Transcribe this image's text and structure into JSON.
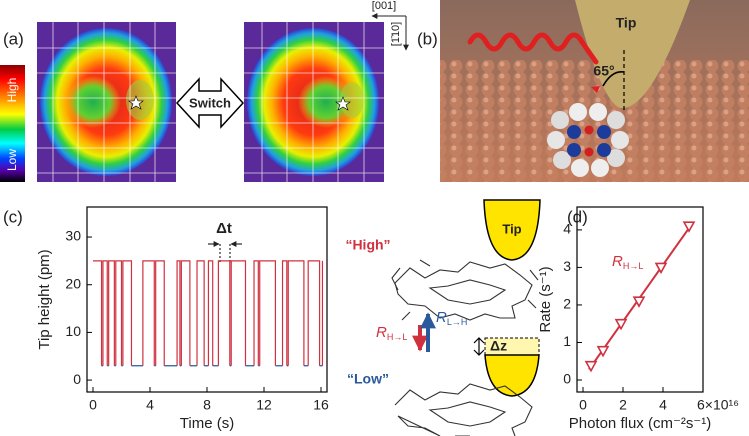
{
  "panel_labels": [
    "(a)",
    "(b)",
    "(c)",
    "(d)"
  ],
  "panel_a": {
    "colorbar": {
      "high": "High",
      "low": "Low"
    },
    "switch": "Switch",
    "directions": [
      "[001]",
      "[1̄10]"
    ]
  },
  "panel_b": {
    "tip": "Tip",
    "angle": "65°"
  },
  "panel_c_schematic": {
    "tip": "Tip",
    "high": "“High”",
    "low": "“Low”",
    "rate_down": {
      "symbol": "R",
      "subscript": "H→L"
    },
    "rate_up": {
      "symbol": "R",
      "subscript": "L→H"
    },
    "dz": "Δz"
  },
  "chart_data": [
    {
      "type": "line",
      "x_label": "Time (s)",
      "y_label": "Tip height (pm)",
      "annotation": "Δt",
      "x": [
        0,
        0.6,
        0.6,
        0.7,
        0.7,
        0.7,
        1.0,
        1.0,
        1.1,
        1.1,
        1.1,
        1.5,
        1.5,
        1.6,
        1.6,
        1.6,
        2.0,
        2.0,
        2.1,
        2.1,
        2.1,
        2.7,
        2.7,
        3.5,
        3.5,
        3.5,
        4.3,
        4.3,
        4.4,
        4.4,
        4.4,
        5.0,
        5.0,
        5.9,
        5.9,
        5.9,
        6.1,
        6.1,
        6.2,
        6.2,
        6.2,
        6.8,
        6.8,
        7.3,
        7.3,
        7.3,
        7.8,
        7.8,
        8.1,
        8.1,
        8.1,
        8.4,
        8.4,
        8.8,
        8.8,
        8.8,
        9.6,
        9.6,
        9.7,
        9.7,
        9.7,
        10.7,
        10.7,
        11.3,
        11.3,
        11.3,
        11.6,
        11.6,
        11.7,
        11.7,
        11.7,
        12.8,
        12.8,
        13.3,
        13.3,
        13.3,
        13.6,
        13.6,
        13.7,
        13.7,
        13.7,
        14.8,
        14.8,
        15.1,
        15.1,
        15.1,
        15.9,
        15.9,
        16.1,
        16.1,
        16.1
      ],
      "series": [
        {
          "color": "#d0313f",
          "values": [
            25,
            25,
            3,
            null,
            3,
            25,
            25,
            3,
            null,
            3,
            25,
            25,
            3,
            null,
            3,
            25,
            25,
            3,
            null,
            3,
            25,
            25,
            3,
            null,
            3,
            25,
            25,
            3,
            null,
            3,
            25,
            25,
            3,
            null,
            3,
            25,
            25,
            3,
            null,
            3,
            25,
            25,
            3,
            null,
            3,
            25,
            25,
            3,
            null,
            3,
            25,
            25,
            3,
            null,
            3,
            25,
            25,
            3,
            null,
            3,
            25,
            25,
            3,
            null,
            3,
            25,
            25,
            3,
            null,
            3,
            25,
            25,
            3,
            null,
            3,
            25,
            25,
            3,
            null,
            3,
            25,
            25,
            3,
            null,
            3,
            25,
            25,
            3,
            null,
            3,
            25
          ]
        },
        {
          "color": "#2a5a9c",
          "values": [
            null,
            null,
            3,
            3,
            null,
            null,
            null,
            3,
            3,
            null,
            null,
            null,
            3,
            3,
            null,
            null,
            null,
            3,
            3,
            null,
            null,
            null,
            3,
            3,
            null,
            null,
            null,
            3,
            3,
            null,
            null,
            null,
            3,
            3,
            null,
            null,
            null,
            3,
            3,
            null,
            null,
            null,
            3,
            3,
            null,
            null,
            null,
            3,
            3,
            null,
            null,
            null,
            3,
            3,
            null,
            null,
            null,
            3,
            3,
            null,
            null,
            null,
            3,
            3,
            null,
            null,
            null,
            3,
            3,
            null,
            null,
            null,
            3,
            3,
            null,
            null,
            null,
            3,
            3,
            null,
            null,
            null,
            3,
            3,
            null,
            null,
            null,
            3,
            3,
            null,
            null
          ]
        }
      ],
      "xlim": [
        -0.42,
        16.42
      ],
      "ylim": [
        -2.5,
        36.3
      ],
      "xticks": [
        0,
        4,
        8,
        12,
        16
      ],
      "yticks": [
        0,
        10,
        20,
        30
      ]
    },
    {
      "type": "scatter",
      "x_label": "Photon flux (cm⁻²s⁻¹)",
      "y_label": "Rate (s⁻¹)",
      "x": [
        0.4,
        1.0,
        1.9,
        2.8,
        3.9,
        5.3
      ],
      "values": [
        0.38,
        0.78,
        1.5,
        2.1,
        3.0,
        4.1
      ],
      "color": "#d0313f",
      "fit": {
        "x": [
          0.3,
          5.5
        ],
        "values": [
          0.28,
          4.2
        ]
      },
      "annotation": {
        "symbol": "R",
        "subscript": "H→L"
      },
      "xlim": [
        -0.3,
        6
      ],
      "ylim": [
        -0.32,
        4.61
      ],
      "xticks": [
        0,
        2,
        4,
        {
          "value": 6,
          "label": "6×10¹⁶"
        }
      ],
      "yticks": [
        0,
        1,
        2,
        3,
        4
      ]
    }
  ]
}
